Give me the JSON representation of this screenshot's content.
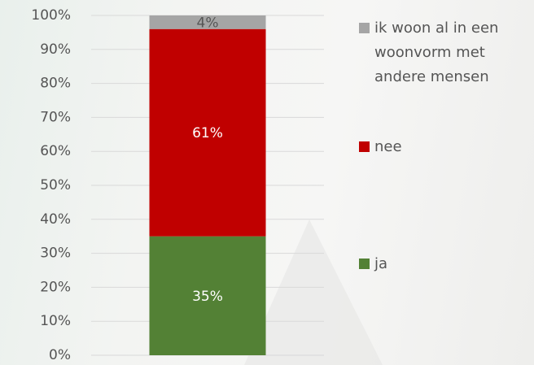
{
  "chart_data": {
    "type": "bar",
    "stacked": true,
    "categories": [
      null
    ],
    "series": [
      {
        "name": "ja",
        "color": "#538135",
        "values": [
          35
        ],
        "value_labels": [
          "35%"
        ]
      },
      {
        "name": "nee",
        "color": "#c00000",
        "values": [
          61
        ],
        "value_labels": [
          "61%"
        ]
      },
      {
        "name": "ik woon al in een woonvorm met andere mensen",
        "color": "#a5a5a5",
        "values": [
          4
        ],
        "value_labels": [
          "4%"
        ]
      }
    ],
    "ylim": [
      0,
      100
    ],
    "yticks": [
      {
        "value": 0,
        "label": "0%"
      },
      {
        "value": 10,
        "label": "10%"
      },
      {
        "value": 20,
        "label": "20%"
      },
      {
        "value": 30,
        "label": "30%"
      },
      {
        "value": 40,
        "label": "40%"
      },
      {
        "value": 50,
        "label": "50%"
      },
      {
        "value": 60,
        "label": "60%"
      },
      {
        "value": 70,
        "label": "70%"
      },
      {
        "value": 80,
        "label": "80%"
      },
      {
        "value": 90,
        "label": "90%"
      },
      {
        "value": 100,
        "label": "100%"
      }
    ],
    "grid": true,
    "legend": "right"
  }
}
